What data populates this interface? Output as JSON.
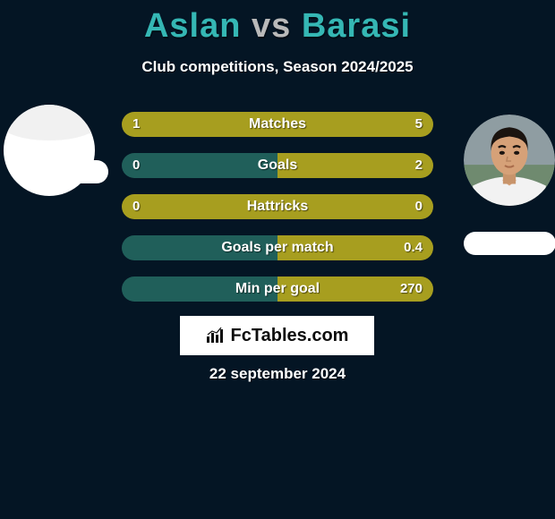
{
  "title": {
    "player1": "Aslan",
    "vs": "vs",
    "player2": "Barasi"
  },
  "subtitle": "Club competitions, Season 2024/2025",
  "colors": {
    "background": "#041524",
    "accent": "#35b7b4",
    "left_fill": "#a79e1f",
    "right_fill": "#a79e1f",
    "bar_bg_left": "#205f5a",
    "bar_bg_right": "#7a6f44",
    "text": "#ffffff"
  },
  "bars": [
    {
      "label": "Matches",
      "left_val": "1",
      "right_val": "5",
      "left_pct": 5,
      "right_pct": 95,
      "bg_left": "#a79e1f",
      "bg_right": "#a79e1f"
    },
    {
      "label": "Goals",
      "left_val": "0",
      "right_val": "2",
      "left_pct": 0,
      "right_pct": 100,
      "bg_left": "#205f5a",
      "bg_right": "#a79e1f"
    },
    {
      "label": "Hattricks",
      "left_val": "0",
      "right_val": "0",
      "left_pct": 0,
      "right_pct": 0,
      "bg_left": "#a79e1f",
      "bg_right": "#a79e1f"
    },
    {
      "label": "Goals per match",
      "left_val": "",
      "right_val": "0.4",
      "left_pct": 0,
      "right_pct": 100,
      "bg_left": "#205f5a",
      "bg_right": "#a79e1f"
    },
    {
      "label": "Min per goal",
      "left_val": "",
      "right_val": "270",
      "left_pct": 0,
      "right_pct": 100,
      "bg_left": "#205f5a",
      "bg_right": "#a79e1f"
    }
  ],
  "brand": {
    "text": "FcTables.com"
  },
  "date": "22 september 2024",
  "avatars": {
    "left": {
      "bg": "#ffffff"
    },
    "right": {
      "skin": "#d6a178",
      "hair": "#1b1410",
      "shirt": "#f4f4f4",
      "bg": "#9aa3a7"
    }
  }
}
